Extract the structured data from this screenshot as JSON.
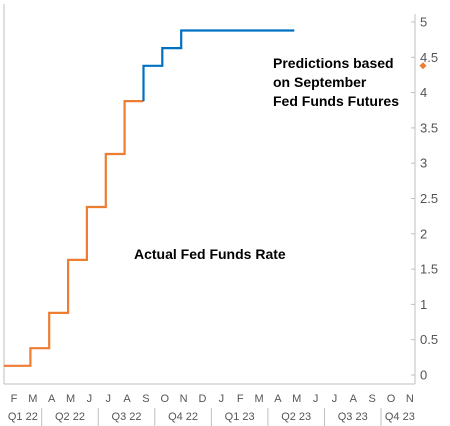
{
  "chart_data": {
    "type": "line",
    "title": "",
    "xlabel": "",
    "ylabel": "",
    "ylim": [
      0,
      5
    ],
    "y_ticks": [
      "0",
      "0.5",
      "1",
      "1.5",
      "2",
      "2.5",
      "3",
      "3.5",
      "4",
      "4.5",
      "5"
    ],
    "y_axis_side": "right",
    "grid": false,
    "months": [
      "F",
      "M",
      "A",
      "M",
      "J",
      "J",
      "A",
      "S",
      "O",
      "N",
      "D",
      "J",
      "F",
      "M",
      "A",
      "M",
      "J",
      "J",
      "A",
      "S",
      "O",
      "N"
    ],
    "quarters": [
      "Q1 22",
      "Q2 22",
      "Q3 22",
      "Q4 22",
      "Q1 23",
      "Q2 23",
      "Q3 23",
      "Q4 23"
    ],
    "series": [
      {
        "name": "Actual Fed Funds Rate",
        "color": "#ed7d31",
        "style": "step",
        "x": [
          0,
          1.4,
          1.4,
          2.4,
          2.4,
          3.4,
          3.4,
          4.4,
          4.4,
          5.4,
          5.4,
          6.4,
          6.4,
          7.4
        ],
        "values": [
          0.13,
          0.13,
          0.38,
          0.38,
          0.88,
          0.88,
          1.63,
          1.63,
          2.38,
          2.38,
          3.13,
          3.13,
          3.88,
          3.88
        ]
      },
      {
        "name": "Predictions based on September Fed Funds Futures",
        "color": "#0070c0",
        "style": "step",
        "x": [
          7.4,
          7.4,
          8.4,
          8.4,
          9.4,
          9.4,
          15.4
        ],
        "values": [
          3.88,
          4.38,
          4.38,
          4.63,
          4.63,
          4.88,
          4.88
        ]
      }
    ],
    "marker": {
      "value": 4.38,
      "color": "#ed7d31"
    },
    "annotations": [
      {
        "lines": [
          "Predictions based",
          "on September",
          "Fed Funds Futures"
        ],
        "color": "#0070c0"
      },
      {
        "lines": [
          "Actual Fed Funds Rate"
        ],
        "color": "#ed7d31"
      }
    ]
  }
}
